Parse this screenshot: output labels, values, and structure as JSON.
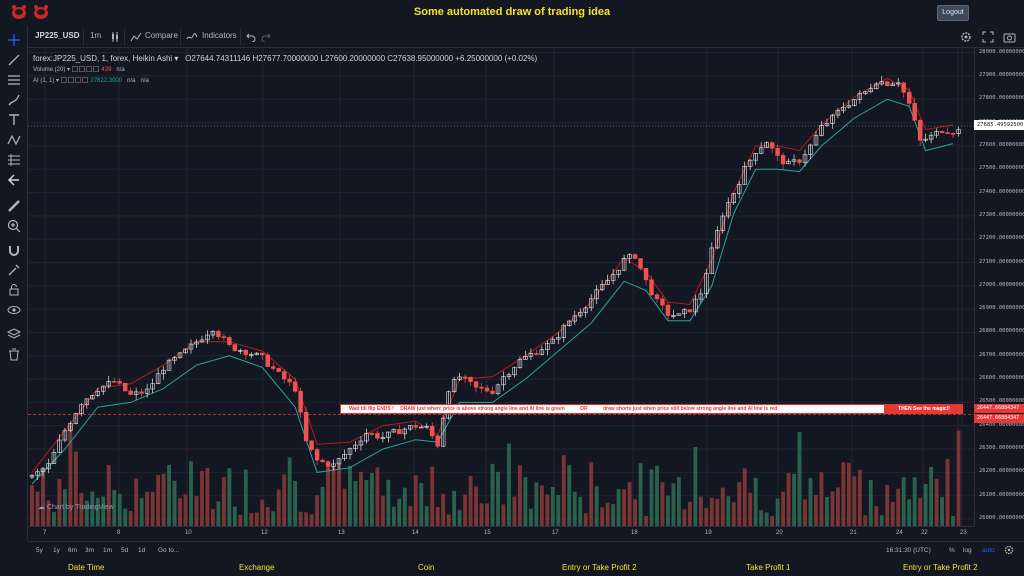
{
  "header": {
    "title": "Some automated draw of trading idea",
    "logout_label": "Logout",
    "brand_color": "#f5e32b"
  },
  "toolbar": {
    "symbol": "JP225_USD",
    "interval": "1m",
    "compare_label": "Compare",
    "indicators_label": "Indicators"
  },
  "legend": {
    "series": "forex:JP225_USD, 1, forex, Heikin Ashi",
    "open": "O27644.74311146",
    "high": "H27677.70000000",
    "low": "L27600.20000000",
    "close": "C27638.95000000",
    "change": "+6.25000000 (+0.02%)",
    "volume_label": "Volume (20)",
    "volume_value": "439",
    "volume_na": "n/a",
    "ai_label": "AI (1, 1)",
    "ai_value": "27622.3000",
    "ai_na1": "n/a",
    "ai_na2": "n/a"
  },
  "price_scale": {
    "labels": [
      "28000.00000000",
      "27900.00000000",
      "27800.00000000",
      "27700.00000000",
      "27600.00000000",
      "27500.00000000",
      "27400.00000000",
      "27300.00000000",
      "27200.00000000",
      "27100.00000000",
      "27000.00000000",
      "26900.00000000",
      "26800.00000000",
      "26700.00000000",
      "26600.00000000",
      "26500.00000000",
      "26400.00000000",
      "26300.00000000",
      "26200.00000000",
      "26100.00000000",
      "26000.00000000"
    ],
    "current_price": "27685.49592500",
    "red_label_1": "26447.66884347",
    "red_label_2": "26447.66884347"
  },
  "banner": {
    "text_1": "Wait till flip ENDS !",
    "text_2": "DRAW just when: price is above strong angle line and AI line is green",
    "text_3": "OR",
    "text_4": "draw shorts just when price still below strong angle line and AI line is red",
    "text_end": "THEN See the magic!!"
  },
  "watermark": "Chart by TradingView",
  "time_axis": {
    "labels": [
      "7",
      "8",
      "10",
      "12",
      "13",
      "14",
      "15",
      "17",
      "18",
      "19",
      "20",
      "21",
      "22",
      "23",
      "24"
    ]
  },
  "bottom_bar": {
    "ranges": [
      "5y",
      "1y",
      "6m",
      "3m",
      "1m",
      "5d",
      "1d"
    ],
    "goto": "Go to...",
    "clock": "16:31:30 (UTC)",
    "percent": "%",
    "log": "log",
    "auto": "auto"
  },
  "footer": {
    "items": [
      "Date Time",
      "Exchange",
      "Coin",
      "Entry or Take Profit 2",
      "Take Profit 1",
      "Entry or Take Profit 2"
    ]
  },
  "chart_data": {
    "type": "candlestick",
    "ylim": [
      25970,
      28020
    ],
    "x_ticks": [
      "7",
      "8",
      "10",
      "12",
      "13",
      "14",
      "15",
      "17",
      "18",
      "19",
      "20",
      "21",
      "22",
      "23",
      "24"
    ],
    "close_path": [
      [
        0,
        26180
      ],
      [
        3,
        26230
      ],
      [
        6,
        26380
      ],
      [
        9,
        26500
      ],
      [
        12,
        26560
      ],
      [
        15,
        26590
      ],
      [
        18,
        26530
      ],
      [
        21,
        26550
      ],
      [
        24,
        26650
      ],
      [
        27,
        26700
      ],
      [
        30,
        26760
      ],
      [
        33,
        26820
      ],
      [
        36,
        26740
      ],
      [
        39,
        26720
      ],
      [
        42,
        26690
      ],
      [
        45,
        26620
      ],
      [
        48,
        26560
      ],
      [
        50,
        26330
      ],
      [
        52,
        26250
      ],
      [
        55,
        26230
      ],
      [
        58,
        26300
      ],
      [
        61,
        26370
      ],
      [
        64,
        26350
      ],
      [
        67,
        26380
      ],
      [
        70,
        26400
      ],
      [
        72,
        26390
      ],
      [
        74,
        26320
      ],
      [
        76,
        26560
      ],
      [
        78,
        26610
      ],
      [
        81,
        26560
      ],
      [
        84,
        26550
      ],
      [
        86,
        26610
      ],
      [
        89,
        26680
      ],
      [
        92,
        26720
      ],
      [
        95,
        26760
      ],
      [
        98,
        26850
      ],
      [
        101,
        26920
      ],
      [
        103,
        26970
      ],
      [
        106,
        27050
      ],
      [
        108,
        27110
      ],
      [
        110,
        27130
      ],
      [
        112,
        27020
      ],
      [
        114,
        26930
      ],
      [
        116,
        26880
      ],
      [
        118,
        26870
      ],
      [
        120,
        26900
      ],
      [
        122,
        26970
      ],
      [
        124,
        27150
      ],
      [
        126,
        27310
      ],
      [
        128,
        27400
      ],
      [
        130,
        27500
      ],
      [
        132,
        27580
      ],
      [
        134,
        27620
      ],
      [
        136,
        27550
      ],
      [
        138,
        27520
      ],
      [
        140,
        27540
      ],
      [
        142,
        27600
      ],
      [
        144,
        27680
      ],
      [
        146,
        27720
      ],
      [
        148,
        27770
      ],
      [
        150,
        27800
      ],
      [
        152,
        27830
      ],
      [
        154,
        27880
      ],
      [
        156,
        27870
      ],
      [
        158,
        27880
      ],
      [
        160,
        27780
      ],
      [
        162,
        27620
      ],
      [
        164,
        27640
      ],
      [
        166,
        27670
      ],
      [
        168,
        27665
      ]
    ],
    "green_line": [
      [
        0,
        26150
      ],
      [
        6,
        26300
      ],
      [
        12,
        26480
      ],
      [
        18,
        26500
      ],
      [
        24,
        26560
      ],
      [
        30,
        26660
      ],
      [
        36,
        26700
      ],
      [
        42,
        26650
      ],
      [
        48,
        26480
      ],
      [
        52,
        26200
      ],
      [
        58,
        26220
      ],
      [
        64,
        26300
      ],
      [
        70,
        26340
      ],
      [
        74,
        26330
      ],
      [
        78,
        26500
      ],
      [
        84,
        26500
      ],
      [
        90,
        26600
      ],
      [
        96,
        26720
      ],
      [
        102,
        26840
      ],
      [
        108,
        27020
      ],
      [
        112,
        26980
      ],
      [
        116,
        26850
      ],
      [
        120,
        26850
      ],
      [
        124,
        27000
      ],
      [
        128,
        27310
      ],
      [
        132,
        27500
      ],
      [
        136,
        27500
      ],
      [
        140,
        27490
      ],
      [
        144,
        27600
      ],
      [
        150,
        27720
      ],
      [
        156,
        27800
      ],
      [
        160,
        27770
      ],
      [
        163,
        27580
      ],
      [
        168,
        27610
      ]
    ],
    "red_line": [
      [
        0,
        26200
      ],
      [
        6,
        26380
      ],
      [
        12,
        26560
      ],
      [
        18,
        26580
      ],
      [
        24,
        26660
      ],
      [
        30,
        26760
      ],
      [
        36,
        26760
      ],
      [
        42,
        26720
      ],
      [
        48,
        26600
      ],
      [
        52,
        26320
      ],
      [
        58,
        26330
      ],
      [
        64,
        26400
      ],
      [
        70,
        26420
      ],
      [
        74,
        26360
      ],
      [
        78,
        26600
      ],
      [
        84,
        26610
      ],
      [
        90,
        26700
      ],
      [
        96,
        26800
      ],
      [
        102,
        26930
      ],
      [
        108,
        27120
      ],
      [
        112,
        27060
      ],
      [
        116,
        26930
      ],
      [
        120,
        26920
      ],
      [
        124,
        27110
      ],
      [
        128,
        27400
      ],
      [
        132,
        27600
      ],
      [
        136,
        27600
      ],
      [
        140,
        27580
      ],
      [
        144,
        27690
      ],
      [
        150,
        27810
      ],
      [
        156,
        27890
      ],
      [
        160,
        27840
      ],
      [
        163,
        27670
      ],
      [
        168,
        27690
      ]
    ],
    "horizontal_level": 26447.66884347,
    "current_price": 27685.495925
  },
  "colors": {
    "up": "#e6e6e6",
    "down": "#ef5350",
    "green_line": "#26a69a",
    "red_line": "#b71c1c",
    "volume_up": "#2f6f55",
    "volume_down": "#8c3a3a"
  }
}
